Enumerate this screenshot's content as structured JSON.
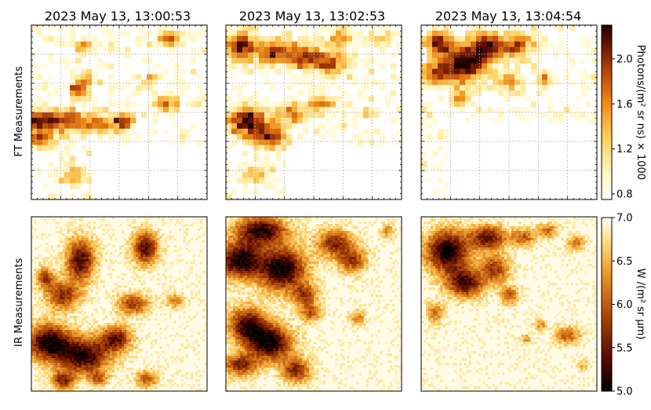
{
  "figure": {
    "row_labels": [
      "FT Measurements",
      "IR Measurements"
    ],
    "column_titles": [
      "2023 May 13, 13:00:53",
      "2023 May 13, 13:02:53",
      "2023 May 13, 13:04:54"
    ]
  },
  "chart_data": [
    {
      "type": "heatmap",
      "row": "FT Measurements",
      "columns": [
        "2023 May 13, 13:00:53",
        "2023 May 13, 13:02:53",
        "2023 May 13, 13:04:54"
      ],
      "colorbar": {
        "label": "Photons/(m² sr ns) × 1000",
        "range": [
          0.75,
          2.3
        ],
        "ticks": [
          "0.8",
          "1.2",
          "1.6",
          "2.0"
        ],
        "tick_values": [
          0.8,
          1.2,
          1.6,
          2.0
        ],
        "colormap": "afmhot_r"
      },
      "grid": true,
      "missing_region": "lower-right of left and middle panels; most of right panel"
    },
    {
      "type": "heatmap",
      "row": "IR Measurements",
      "columns": [
        "2023 May 13, 13:00:53",
        "2023 May 13, 13:02:53",
        "2023 May 13, 13:04:54"
      ],
      "colorbar": {
        "label": "W /(m² sr μm)",
        "range": [
          5.0,
          7.0
        ],
        "ticks": [
          "5.0",
          "5.5",
          "6.0",
          "6.5",
          "7.0"
        ],
        "tick_values": [
          5.0,
          5.5,
          6.0,
          6.5,
          7.0
        ],
        "colormap": "afmhot"
      },
      "grid": false
    }
  ]
}
